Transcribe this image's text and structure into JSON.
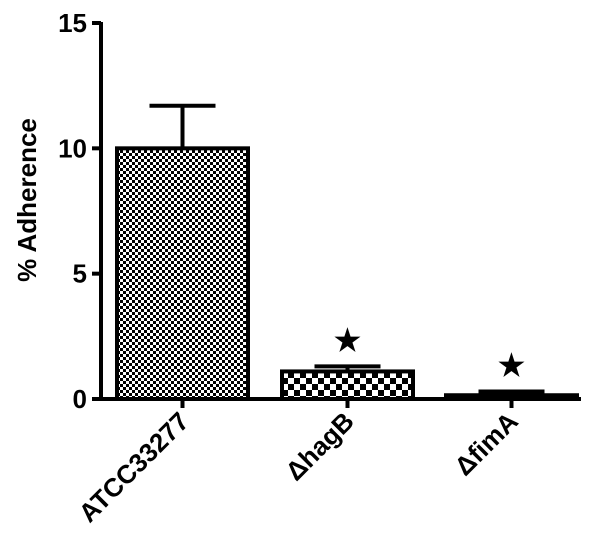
{
  "chart_data": {
    "type": "bar",
    "title": "",
    "xlabel": "",
    "ylabel": "% Adherence",
    "ylim": [
      0,
      15
    ],
    "yticks": [
      "0",
      "5",
      "10",
      "15"
    ],
    "grid": false,
    "legend": "none",
    "categories": [
      "ATCC33277",
      "ΔhagB",
      "ΔfimA"
    ],
    "values": [
      10.0,
      1.1,
      0.15
    ],
    "error_upper": [
      1.7,
      0.2,
      0.15
    ],
    "significance_marks": [
      "",
      "★",
      "★"
    ],
    "fill_patterns": [
      "fine-checker",
      "coarse-checker",
      "fine-checker"
    ],
    "colors": {
      "axis": "#000000",
      "bar_fill": "#000000",
      "bar_background": "#ffffff"
    }
  }
}
